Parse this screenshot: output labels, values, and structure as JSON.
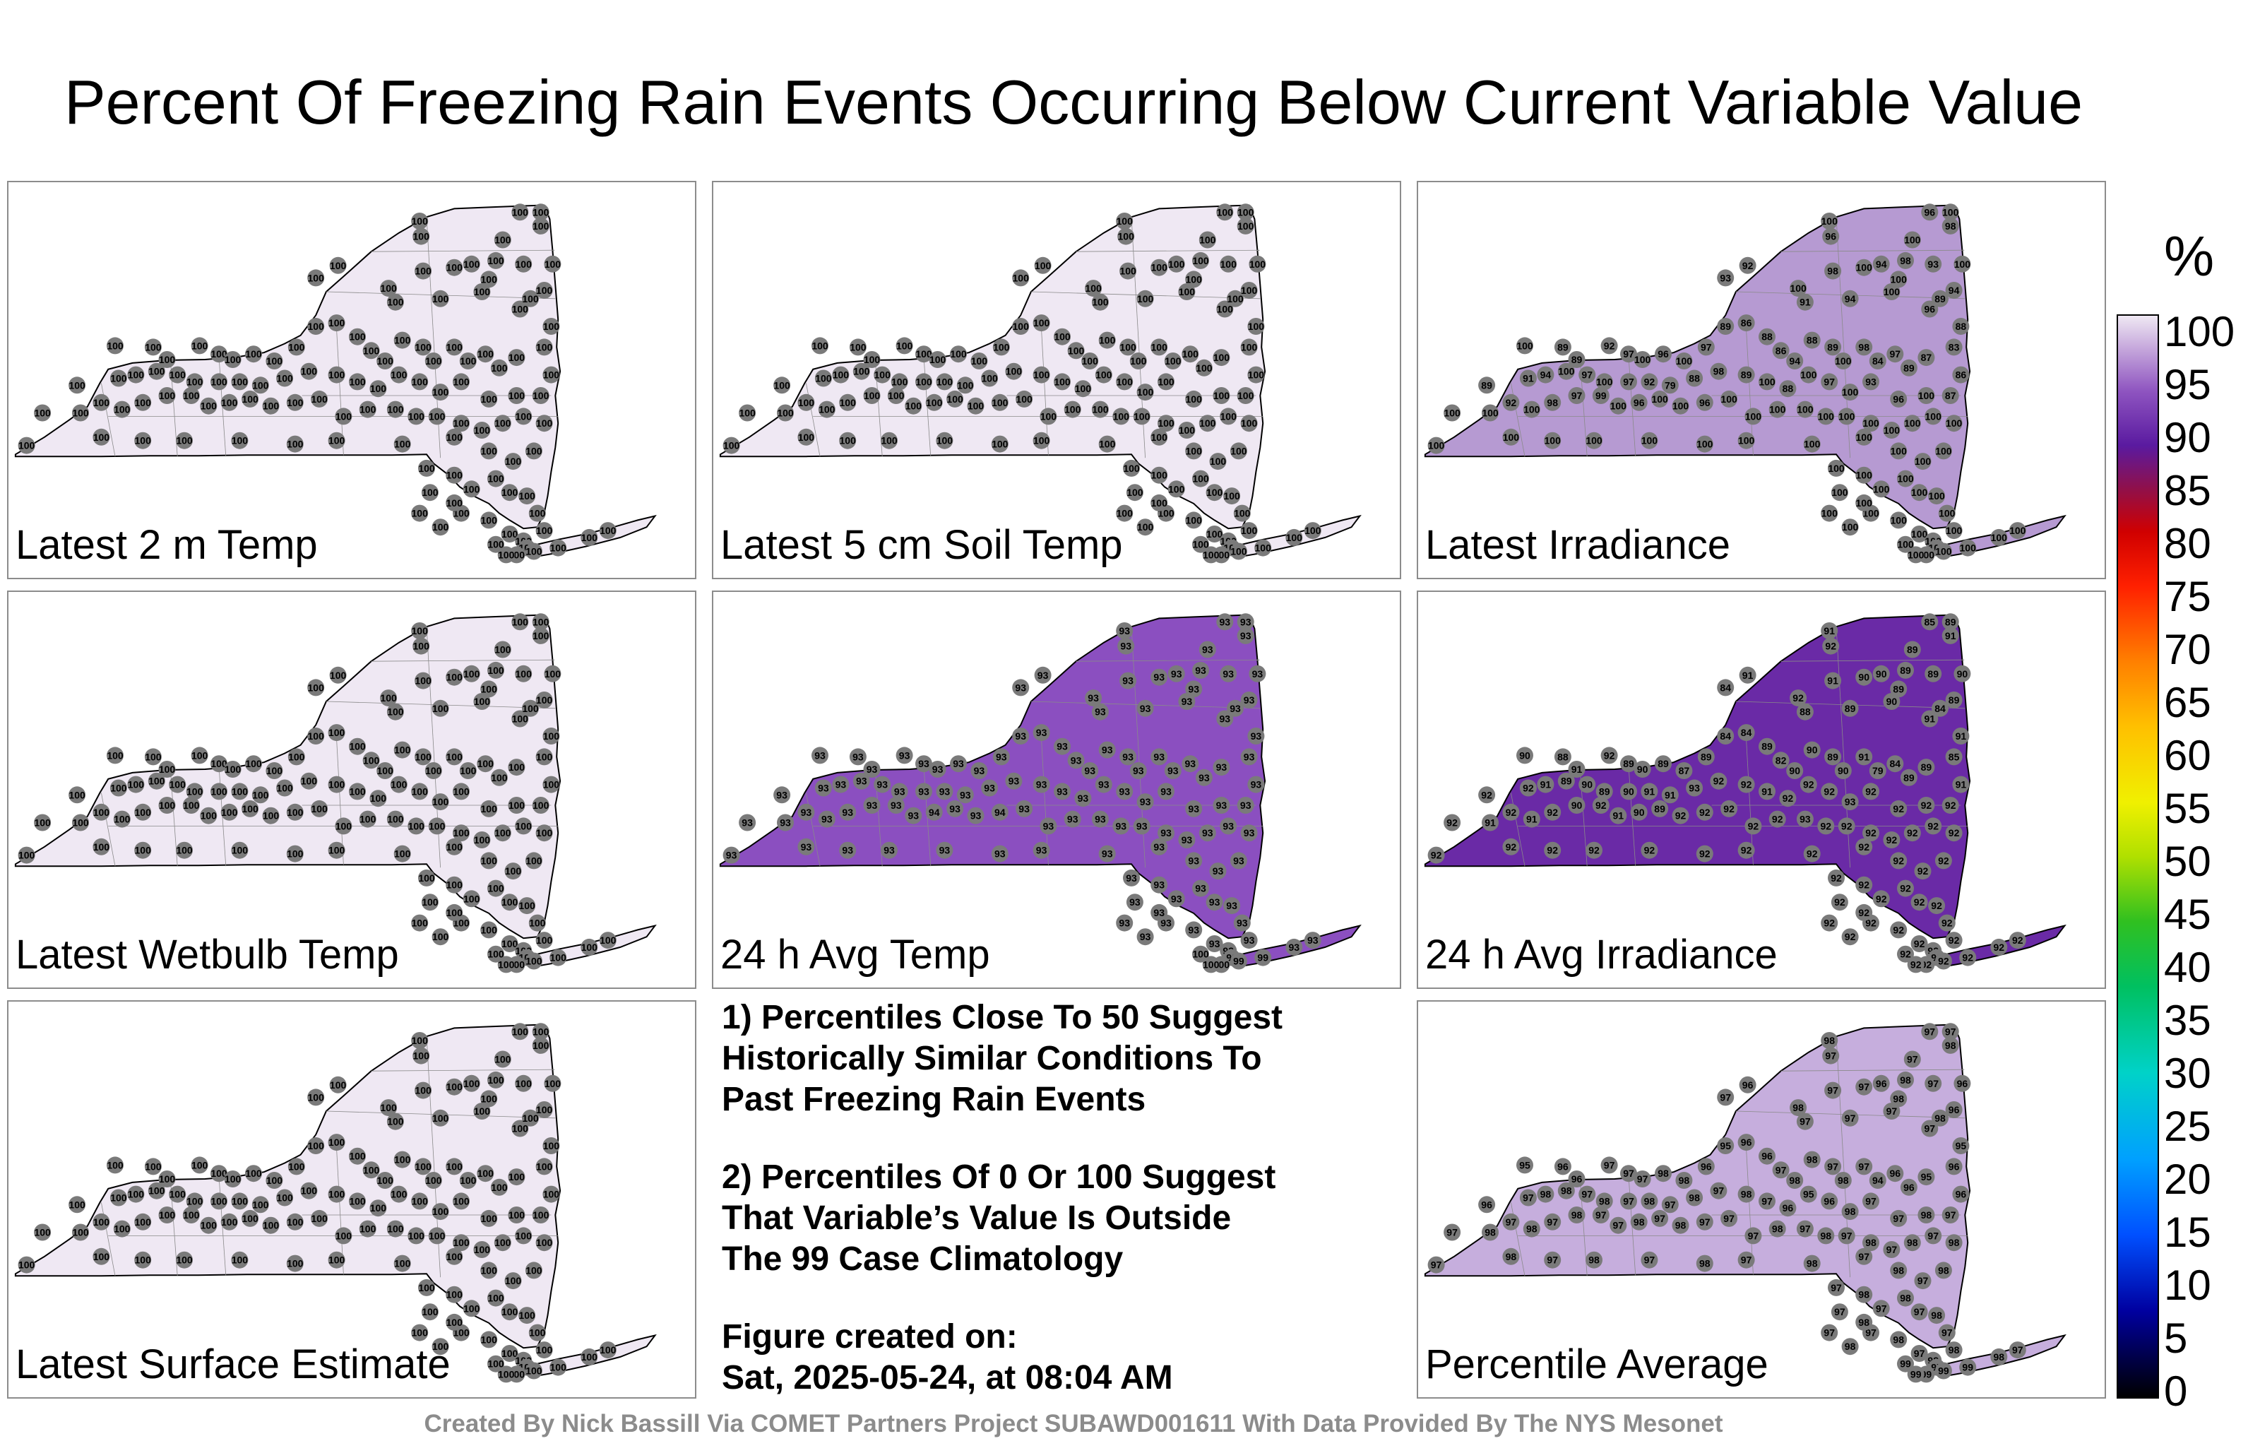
{
  "title": "Percent Of Freezing Rain Events Occurring Below Current Variable Value",
  "panels": [
    {
      "label": "Latest 2 m Temp",
      "fill": "#efe8f3",
      "stations": [
        100,
        100,
        100,
        100,
        100,
        100,
        100,
        100,
        100,
        100,
        100,
        100,
        100,
        100,
        100,
        100,
        100,
        100,
        100,
        100,
        100,
        100,
        100,
        100,
        100,
        100,
        100,
        100,
        100,
        100,
        100,
        100,
        100,
        100,
        100,
        100,
        100,
        100,
        100,
        100,
        100,
        100,
        100,
        100,
        100,
        100,
        100,
        100,
        100,
        100,
        100,
        100,
        100,
        100,
        100,
        100,
        100,
        100,
        100,
        100,
        100,
        100,
        100,
        100,
        100,
        100,
        100,
        100,
        100,
        100,
        100,
        100,
        100,
        100,
        100,
        100,
        100,
        100,
        100,
        100,
        100,
        100,
        100,
        100,
        100,
        100,
        100,
        100,
        100,
        100,
        100,
        100,
        100,
        100,
        100,
        100,
        100,
        100,
        100,
        100,
        100,
        100,
        100,
        100,
        100,
        100,
        100,
        100,
        100,
        100,
        100,
        100,
        100,
        100,
        100,
        100,
        100,
        100,
        100,
        100,
        100,
        100,
        100,
        100,
        100,
        100,
        100,
        100,
        100,
        100
      ]
    },
    {
      "label": "Latest 5 cm Soil Temp",
      "fill": "#efe8f3",
      "stations": [
        100,
        100,
        100,
        100,
        100,
        100,
        100,
        100,
        100,
        100,
        100,
        100,
        100,
        100,
        100,
        100,
        100,
        100,
        100,
        100,
        100,
        100,
        100,
        100,
        100,
        100,
        100,
        100,
        100,
        100,
        100,
        100,
        100,
        100,
        100,
        100,
        100,
        100,
        100,
        100,
        100,
        100,
        100,
        100,
        100,
        100,
        100,
        100,
        100,
        100,
        100,
        100,
        100,
        100,
        100,
        100,
        100,
        100,
        100,
        100,
        100,
        100,
        100,
        100,
        100,
        100,
        100,
        100,
        100,
        100,
        100,
        100,
        100,
        100,
        100,
        100,
        100,
        100,
        100,
        100,
        100,
        100,
        100,
        100,
        100,
        100,
        100,
        100,
        100,
        100,
        100,
        100,
        100,
        100,
        100,
        100,
        100,
        100,
        100,
        100,
        100,
        100,
        100,
        100,
        100,
        100,
        100,
        100,
        100,
        100,
        100,
        100,
        100,
        100,
        100,
        100,
        100,
        100,
        100,
        100,
        100,
        100,
        100,
        100,
        100,
        100,
        100,
        100,
        100,
        100
      ]
    },
    {
      "label": "Latest Irradiance",
      "fill": "#b69ad2",
      "stations": [
        100,
        96,
        96,
        100,
        98,
        100,
        92,
        93,
        94,
        98,
        100,
        100,
        98,
        100,
        91,
        94,
        100,
        93,
        100,
        96,
        89,
        94,
        100,
        89,
        89,
        92,
        97,
        100,
        96,
        100,
        97,
        89,
        86,
        88,
        86,
        94,
        88,
        89,
        100,
        98,
        84,
        97,
        89,
        87,
        83,
        88,
        86,
        89,
        91,
        94,
        100,
        97,
        100,
        97,
        92,
        79,
        88,
        98,
        89,
        100,
        88,
        100,
        97,
        100,
        93,
        96,
        100,
        87,
        100,
        100,
        92,
        100,
        98,
        97,
        99,
        100,
        96,
        100,
        100,
        96,
        100,
        100,
        100,
        100,
        100,
        100,
        100,
        100,
        100,
        100,
        100,
        100,
        100,
        100,
        100,
        100,
        100,
        100,
        100,
        100,
        100,
        100,
        100,
        100,
        100,
        100,
        100,
        100,
        100,
        100,
        100,
        100,
        100,
        100,
        100,
        100,
        100,
        100,
        100,
        100,
        100,
        100,
        100,
        100,
        100,
        100,
        100,
        100,
        100,
        100
      ]
    },
    {
      "label": "Latest Wetbulb Temp",
      "fill": "#efe8f3",
      "stations": [
        100,
        100,
        100,
        100,
        100,
        100,
        100,
        100,
        100,
        100,
        100,
        100,
        100,
        100,
        100,
        100,
        100,
        100,
        100,
        100,
        100,
        100,
        100,
        100,
        100,
        100,
        100,
        100,
        100,
        100,
        100,
        100,
        100,
        100,
        100,
        100,
        100,
        100,
        100,
        100,
        100,
        100,
        100,
        100,
        100,
        100,
        100,
        100,
        100,
        100,
        100,
        100,
        100,
        100,
        100,
        100,
        100,
        100,
        100,
        100,
        100,
        100,
        100,
        100,
        100,
        100,
        100,
        100,
        100,
        100,
        100,
        100,
        100,
        100,
        100,
        100,
        100,
        100,
        100,
        100,
        100,
        100,
        100,
        100,
        100,
        100,
        100,
        100,
        100,
        100,
        100,
        100,
        100,
        100,
        100,
        100,
        100,
        100,
        100,
        100,
        100,
        100,
        100,
        100,
        100,
        100,
        100,
        100,
        100,
        100,
        100,
        100,
        100,
        100,
        100,
        100,
        100,
        100,
        100,
        100,
        100,
        100,
        100,
        100,
        100,
        100,
        100,
        100,
        100,
        100
      ]
    },
    {
      "label": "24 h Avg Temp",
      "fill": "#8b4fc0",
      "stations": [
        93,
        93,
        93,
        93,
        93,
        93,
        93,
        93,
        93,
        93,
        93,
        93,
        93,
        93,
        93,
        93,
        93,
        93,
        93,
        93,
        93,
        93,
        93,
        93,
        93,
        93,
        93,
        93,
        93,
        93,
        93,
        93,
        93,
        93,
        93,
        93,
        93,
        93,
        93,
        93,
        93,
        93,
        93,
        93,
        93,
        93,
        93,
        93,
        93,
        93,
        93,
        93,
        93,
        93,
        93,
        93,
        93,
        93,
        93,
        93,
        93,
        93,
        93,
        93,
        93,
        93,
        93,
        93,
        93,
        93,
        93,
        93,
        93,
        93,
        93,
        93,
        94,
        93,
        93,
        94,
        93,
        93,
        93,
        93,
        93,
        93,
        93,
        93,
        93,
        93,
        93,
        93,
        93,
        93,
        93,
        93,
        93,
        93,
        93,
        93,
        93,
        93,
        93,
        93,
        93,
        93,
        93,
        93,
        93,
        93,
        93,
        93,
        93,
        93,
        100,
        100,
        100,
        99,
        99,
        93,
        93,
        93,
        93,
        93,
        93,
        93,
        93,
        93,
        93,
        93
      ]
    },
    {
      "label": "24 h Avg Irradiance",
      "fill": "#6a2aa6",
      "stations": [
        91,
        92,
        85,
        89,
        91,
        89,
        91,
        84,
        90,
        89,
        90,
        89,
        91,
        92,
        88,
        89,
        90,
        89,
        90,
        91,
        84,
        89,
        90,
        88,
        91,
        92,
        89,
        90,
        89,
        87,
        89,
        84,
        84,
        89,
        82,
        90,
        90,
        89,
        90,
        91,
        79,
        84,
        89,
        89,
        85,
        91,
        91,
        92,
        92,
        91,
        89,
        90,
        89,
        90,
        91,
        91,
        93,
        92,
        92,
        91,
        92,
        92,
        92,
        93,
        92,
        92,
        92,
        92,
        92,
        91,
        92,
        91,
        92,
        90,
        92,
        91,
        90,
        89,
        92,
        92,
        92,
        92,
        92,
        93,
        92,
        92,
        92,
        92,
        92,
        92,
        92,
        92,
        92,
        92,
        92,
        92,
        92,
        92,
        92,
        92,
        92,
        92,
        92,
        92,
        92,
        92,
        92,
        92,
        92,
        92,
        92,
        92,
        92,
        92,
        92,
        92,
        92,
        92,
        92,
        92,
        92,
        92,
        92,
        92,
        92,
        92,
        92,
        92,
        92,
        92
      ]
    },
    {
      "label": "Latest Surface Estimate",
      "fill": "#efe8f3",
      "stations": [
        100,
        100,
        100,
        100,
        100,
        100,
        100,
        100,
        100,
        100,
        100,
        100,
        100,
        100,
        100,
        100,
        100,
        100,
        100,
        100,
        100,
        100,
        100,
        100,
        100,
        100,
        100,
        100,
        100,
        100,
        100,
        100,
        100,
        100,
        100,
        100,
        100,
        100,
        100,
        100,
        100,
        100,
        100,
        100,
        100,
        100,
        100,
        100,
        100,
        100,
        100,
        100,
        100,
        100,
        100,
        100,
        100,
        100,
        100,
        100,
        100,
        100,
        100,
        100,
        100,
        100,
        100,
        100,
        100,
        100,
        100,
        100,
        100,
        100,
        100,
        100,
        100,
        100,
        100,
        100,
        100,
        100,
        100,
        100,
        100,
        100,
        100,
        100,
        100,
        100,
        100,
        100,
        100,
        100,
        100,
        100,
        100,
        100,
        100,
        100,
        100,
        100,
        100,
        100,
        100,
        100,
        100,
        100,
        100,
        100,
        100,
        100,
        100,
        100,
        100,
        100,
        100,
        100,
        100,
        100,
        100,
        100,
        100,
        100,
        100,
        100,
        100,
        100,
        100,
        100
      ]
    },
    {
      "label": "Percentile Average",
      "fill": "#c6aedd",
      "stations": [
        98,
        97,
        97,
        97,
        98,
        97,
        96,
        97,
        96,
        98,
        97,
        98,
        97,
        98,
        97,
        97,
        97,
        97,
        96,
        97,
        98,
        96,
        95,
        96,
        96,
        97,
        97,
        97,
        98,
        98,
        96,
        95,
        96,
        96,
        97,
        98,
        98,
        97,
        98,
        97,
        94,
        96,
        96,
        95,
        96,
        95,
        96,
        96,
        97,
        98,
        98,
        97,
        98,
        97,
        98,
        97,
        98,
        97,
        98,
        97,
        96,
        95,
        96,
        98,
        97,
        97,
        98,
        97,
        97,
        98,
        97,
        98,
        97,
        98,
        97,
        97,
        98,
        97,
        98,
        97,
        97,
        97,
        98,
        97,
        98,
        97,
        98,
        97,
        98,
        97,
        98,
        97,
        98,
        97,
        98,
        97,
        98,
        97,
        98,
        97,
        98,
        97,
        98,
        97,
        98,
        97,
        98,
        97,
        98,
        97,
        98,
        97,
        98,
        97,
        99,
        99,
        99,
        99,
        99,
        98,
        97,
        97,
        98,
        97,
        98,
        97,
        98,
        97,
        98,
        97
      ]
    }
  ],
  "notes": {
    "line1": "1) Percentiles Close To 50 Suggest",
    "line2": "Historically Similar Conditions To",
    "line3": "Past Freezing Rain Events",
    "line4": "2) Percentiles Of 0 Or 100 Suggest",
    "line5": "That Variable’s Value Is Outside",
    "line6": "The 99 Case Climatology",
    "line7": "Figure created on:",
    "line8": "Sat, 2025-05-24, at 08:04 AM"
  },
  "colorbar": {
    "unit": "%",
    "ticks": [
      "100",
      "95",
      "90",
      "85",
      "80",
      "75",
      "70",
      "65",
      "60",
      "55",
      "50",
      "45",
      "40",
      "35",
      "30",
      "25",
      "20",
      "15",
      "10",
      "5",
      "0"
    ]
  },
  "credit": "Created By Nick Bassill Via COMET Partners Project SUBAWD001611 With Data Provided By The NYS Mesonet"
}
